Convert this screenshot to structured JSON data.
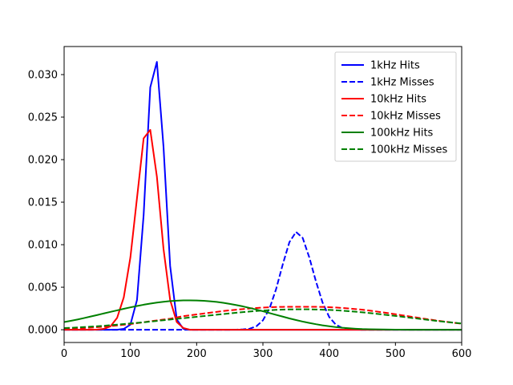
{
  "chart_data": {
    "type": "line",
    "title": "",
    "xlabel": "",
    "ylabel": "",
    "xlim": [
      0,
      600
    ],
    "ylim": [
      -0.0015,
      0.0333
    ],
    "xticks": [
      0,
      100,
      200,
      300,
      400,
      500,
      600
    ],
    "yticks": [
      0.0,
      0.005,
      0.01,
      0.015,
      0.02,
      0.025,
      0.03
    ],
    "xtick_labels": [
      "0",
      "100",
      "200",
      "300",
      "400",
      "500",
      "600"
    ],
    "ytick_labels": [
      "0.000",
      "0.005",
      "0.010",
      "0.015",
      "0.020",
      "0.025",
      "0.030"
    ],
    "grid": false,
    "legend_position": "top-right",
    "x": [
      0,
      10,
      20,
      30,
      40,
      50,
      60,
      70,
      80,
      90,
      100,
      110,
      120,
      130,
      140,
      150,
      160,
      170,
      180,
      190,
      200,
      210,
      220,
      230,
      240,
      250,
      260,
      270,
      280,
      290,
      300,
      310,
      320,
      330,
      340,
      350,
      360,
      370,
      380,
      390,
      400,
      410,
      420,
      430,
      440,
      450,
      460,
      470,
      480,
      490,
      500,
      510,
      520,
      530,
      540,
      550,
      560,
      570,
      580,
      590,
      600
    ],
    "series": [
      {
        "name": "1kHz Hits",
        "color": "#0000ff",
        "linestyle": "solid",
        "values": [
          0,
          0,
          0,
          0,
          0,
          0,
          0,
          0,
          0,
          0.0001,
          0.0006,
          0.0035,
          0.0135,
          0.0285,
          0.0315,
          0.0215,
          0.0075,
          0.0012,
          0.0001,
          0,
          0,
          0,
          0,
          0,
          0,
          0,
          0,
          0,
          0,
          0,
          0,
          0,
          0,
          0,
          0,
          0,
          0,
          0,
          0,
          0,
          0,
          0,
          0,
          0,
          0,
          0,
          0,
          0,
          0,
          0,
          0,
          0,
          0,
          0,
          0,
          0,
          0,
          0,
          0,
          0,
          0
        ]
      },
      {
        "name": "1kHz Misses",
        "color": "#0000ff",
        "linestyle": "dashed",
        "values": [
          0,
          0,
          0,
          0,
          0,
          0,
          0,
          0,
          0,
          0,
          0,
          0,
          0,
          0,
          0,
          0,
          0,
          0,
          0,
          0,
          0,
          0,
          0,
          0,
          0,
          0,
          1e-05,
          4e-05,
          0.00012,
          0.0004,
          0.0011,
          0.0025,
          0.0048,
          0.0077,
          0.0103,
          0.0115,
          0.0108,
          0.0085,
          0.0057,
          0.0032,
          0.0015,
          0.0006,
          0.0002,
          5e-05,
          1e-05,
          0,
          0,
          0,
          0,
          0,
          0,
          0,
          0,
          0,
          0,
          0,
          0,
          0,
          0,
          0,
          0
        ]
      },
      {
        "name": "10kHz Hits",
        "color": "#ff0000",
        "linestyle": "solid",
        "values": [
          0,
          0,
          0,
          0,
          0,
          2e-05,
          0.0001,
          0.0004,
          0.0014,
          0.0038,
          0.0085,
          0.0155,
          0.0225,
          0.0235,
          0.018,
          0.0095,
          0.0035,
          0.0009,
          0.0002,
          0,
          0,
          0,
          0,
          0,
          0,
          0,
          0,
          0,
          0,
          0,
          0,
          0,
          0,
          0,
          0,
          0,
          0,
          0,
          0,
          0,
          0,
          0,
          0,
          0,
          0,
          0,
          0,
          0,
          0,
          0,
          0,
          0,
          0,
          0,
          0,
          0,
          0,
          0,
          0,
          0,
          0
        ]
      },
      {
        "name": "10kHz Misses",
        "color": "#ff0000",
        "linestyle": "dashed",
        "values": [
          0.0001,
          0.00013,
          0.00016,
          0.0002,
          0.00025,
          0.0003,
          0.00036,
          0.00043,
          0.0005,
          0.00058,
          0.00067,
          0.00077,
          0.00088,
          0.001,
          0.0011,
          0.0012,
          0.0013,
          0.00145,
          0.0016,
          0.0017,
          0.0018,
          0.0019,
          0.002,
          0.0021,
          0.0022,
          0.00228,
          0.00236,
          0.00243,
          0.0025,
          0.00256,
          0.0026,
          0.00264,
          0.00267,
          0.00269,
          0.0027,
          0.0027,
          0.0027,
          0.0027,
          0.0027,
          0.00268,
          0.00265,
          0.00261,
          0.00256,
          0.0025,
          0.00243,
          0.00235,
          0.00226,
          0.00216,
          0.00205,
          0.00194,
          0.00182,
          0.0017,
          0.00158,
          0.00146,
          0.00134,
          0.00122,
          0.00111,
          0.001,
          0.0009,
          0.0008,
          0.0007
        ]
      },
      {
        "name": "100kHz Hits",
        "color": "#008000",
        "linestyle": "solid",
        "values": [
          0.0009,
          0.00105,
          0.0012,
          0.00137,
          0.00155,
          0.00173,
          0.00192,
          0.0021,
          0.00228,
          0.00246,
          0.00263,
          0.00279,
          0.00294,
          0.00307,
          0.00319,
          0.00329,
          0.00337,
          0.00342,
          0.00345,
          0.00345,
          0.00344,
          0.00341,
          0.00335,
          0.00327,
          0.00317,
          0.00304,
          0.0029,
          0.00274,
          0.00256,
          0.00237,
          0.00217,
          0.00196,
          0.00175,
          0.00154,
          0.00133,
          0.00114,
          0.00096,
          0.0008,
          0.00065,
          0.00052,
          0.00041,
          0.00031,
          0.00023,
          0.00017,
          0.00012,
          8e-05,
          6e-05,
          4e-05,
          3e-05,
          2e-05,
          1e-05,
          1e-05,
          0,
          0,
          0,
          0,
          0,
          0,
          0,
          0,
          0
        ]
      },
      {
        "name": "100kHz Misses",
        "color": "#008000",
        "linestyle": "dashed",
        "values": [
          0.0002,
          0.00023,
          0.00027,
          0.00031,
          0.00036,
          0.00041,
          0.00047,
          0.00053,
          0.0006,
          0.00067,
          0.00074,
          0.00081,
          0.00088,
          0.00096,
          0.00104,
          0.00112,
          0.0012,
          0.00128,
          0.00136,
          0.00144,
          0.00152,
          0.0016,
          0.00168,
          0.00176,
          0.00184,
          0.00192,
          0.002,
          0.00207,
          0.00214,
          0.0022,
          0.00226,
          0.0023,
          0.00234,
          0.00237,
          0.00239,
          0.0024,
          0.0024,
          0.0024,
          0.00238,
          0.00236,
          0.00233,
          0.00229,
          0.00224,
          0.00218,
          0.00212,
          0.00205,
          0.00197,
          0.00189,
          0.0018,
          0.00171,
          0.00162,
          0.00153,
          0.00143,
          0.00134,
          0.00124,
          0.00115,
          0.00106,
          0.00097,
          0.00089,
          0.00081,
          0.00073
        ]
      }
    ]
  }
}
